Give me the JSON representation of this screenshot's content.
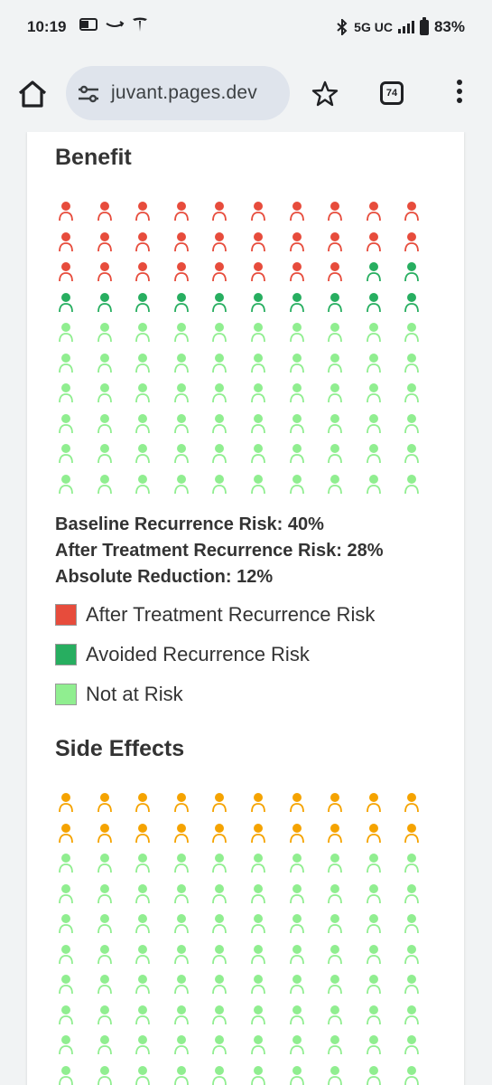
{
  "status_bar": {
    "time": "10:19",
    "network": "5G UC",
    "battery": "83%",
    "icons": [
      "outlook-icon",
      "amazon-icon",
      "tesla-icon",
      "bluetooth-icon",
      "signal-icon",
      "battery-icon"
    ]
  },
  "browser": {
    "url": "juvant.pages.dev",
    "tab_count": "74"
  },
  "benefit": {
    "title": "Benefit",
    "baseline": "Baseline Recurrence Risk: 40%",
    "after": "After Treatment Recurrence Risk: 28%",
    "reduction": "Absolute Reduction: 12%",
    "legend": [
      {
        "label": "After Treatment Recurrence Risk",
        "color": "#e74c3c"
      },
      {
        "label": "Avoided Recurrence Risk",
        "color": "#27ae60"
      },
      {
        "label": "Not at Risk",
        "color": "#90ee90"
      }
    ],
    "grid": {
      "columns": 10,
      "rows": 10,
      "counts": {
        "after_treatment": 28,
        "avoided": 12,
        "not_at_risk": 60
      }
    }
  },
  "side_effects": {
    "title": "Side Effects",
    "grid": {
      "columns": 10,
      "visible_rows": 10,
      "counts": {
        "side_effect": 20
      }
    },
    "colors": {
      "side_effect": "#f5a300",
      "no_effect": "#90ee90"
    }
  }
}
